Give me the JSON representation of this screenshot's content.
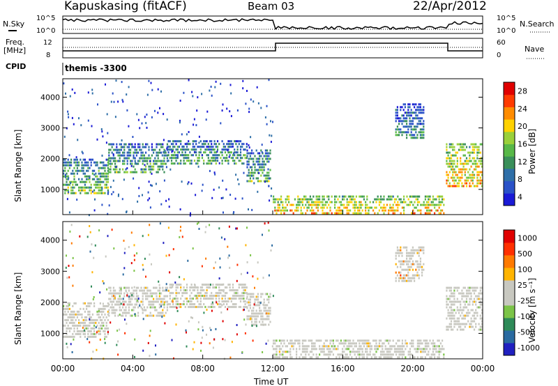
{
  "header": {
    "station": "Kapuskasing (fitACF)",
    "beam": "Beam 03",
    "date": "22/Apr/2012"
  },
  "labels": {
    "nsky": "N.Sky",
    "nsearch": "N.Search",
    "freq": "Freq.",
    "freq_unit": "[MHz]",
    "nave": "Nave",
    "cpid": "CPID",
    "cpid_value": "themis -3300",
    "slant_range": "Slant Range [km]",
    "time_axis": "Time UT",
    "power_label": "Power [dB]",
    "velocity_label": "Velocity [m s⁻¹]"
  },
  "noise_ticks_left": [
    "10^5",
    "10^0"
  ],
  "noise_ticks_right": [
    "10^5",
    "10^0"
  ],
  "freq_ticks": [
    "12",
    "8"
  ],
  "nave_ticks": [
    "60",
    "0"
  ],
  "colors": {
    "power": [
      "#1a1ad6",
      "#2a52c8",
      "#2f6fa8",
      "#3a8f5a",
      "#58b848",
      "#9ad03a",
      "#ffd200",
      "#ff8c00",
      "#ff3b00",
      "#e00000"
    ],
    "velocity": [
      "#2020c0",
      "#2a6aa0",
      "#2e8a58",
      "#7cc448",
      "#c8c8c0",
      "#c8c8c0",
      "#ffb400",
      "#ff7a00",
      "#ff3000",
      "#e00000"
    ],
    "background_scatter": "#c7c7bf"
  },
  "chart_data": [
    {
      "type": "heatmap",
      "title": "Power",
      "xlabel": "",
      "ylabel": "Slant Range [km]",
      "x_ticks": [
        "00:00",
        "04:00",
        "08:00",
        "12:00",
        "16:00",
        "20:00",
        "00:00"
      ],
      "xlim_hours": [
        0,
        24
      ],
      "y_ticks": [
        4000,
        3000,
        2000,
        1000
      ],
      "ylim": [
        180,
        4600
      ],
      "colorbar": {
        "label": "Power [dB]",
        "ticks": [
          28,
          24,
          20,
          16,
          12,
          8,
          4
        ],
        "range": [
          0,
          30
        ]
      },
      "regions": [
        {
          "t0": 0.0,
          "t1": 2.6,
          "r0": 900,
          "r1": 2000,
          "level": 0.25
        },
        {
          "t0": 2.6,
          "t1": 6.0,
          "r0": 1550,
          "r1": 2500,
          "level": 0.2
        },
        {
          "t0": 6.0,
          "t1": 10.5,
          "r0": 1800,
          "r1": 2600,
          "level": 0.2
        },
        {
          "t0": 10.5,
          "t1": 11.9,
          "r0": 1300,
          "r1": 2300,
          "level": 0.2
        },
        {
          "t0": 12.0,
          "t1": 21.8,
          "r0": 250,
          "r1": 800,
          "level": 0.45
        },
        {
          "t0": 19.0,
          "t1": 20.6,
          "r0": 2700,
          "r1": 3800,
          "level": 0.1
        },
        {
          "t0": 21.9,
          "t1": 24.0,
          "r0": 1100,
          "r1": 2500,
          "level": 0.45
        }
      ]
    },
    {
      "type": "heatmap",
      "title": "Velocity",
      "xlabel": "Time UT",
      "ylabel": "Slant Range [km]",
      "x_ticks": [
        "00:00",
        "04:00",
        "08:00",
        "12:00",
        "16:00",
        "20:00",
        "00:00"
      ],
      "xlim_hours": [
        0,
        24
      ],
      "y_ticks": [
        4000,
        3000,
        2000,
        1000
      ],
      "ylim": [
        180,
        4600
      ],
      "colorbar": {
        "label": "Velocity [m s⁻¹]",
        "ticks": [
          1000,
          500,
          100,
          25,
          -25,
          -100,
          -500,
          -1000
        ],
        "range": [
          -1000,
          1000
        ]
      },
      "regions": [
        {
          "t0": 0.0,
          "t1": 2.6,
          "r0": 900,
          "r1": 2000,
          "level": 0.5
        },
        {
          "t0": 2.6,
          "t1": 6.0,
          "r0": 1550,
          "r1": 2500,
          "level": 0.5
        },
        {
          "t0": 6.0,
          "t1": 10.5,
          "r0": 1800,
          "r1": 2600,
          "level": 0.5
        },
        {
          "t0": 10.5,
          "t1": 11.9,
          "r0": 1300,
          "r1": 2300,
          "level": 0.5
        },
        {
          "t0": 12.0,
          "t1": 21.8,
          "r0": 250,
          "r1": 800,
          "level": 0.5
        },
        {
          "t0": 19.0,
          "t1": 20.6,
          "r0": 2700,
          "r1": 3800,
          "level": 0.65
        },
        {
          "t0": 21.9,
          "t1": 24.0,
          "r0": 1100,
          "r1": 2500,
          "level": 0.5
        }
      ]
    }
  ]
}
